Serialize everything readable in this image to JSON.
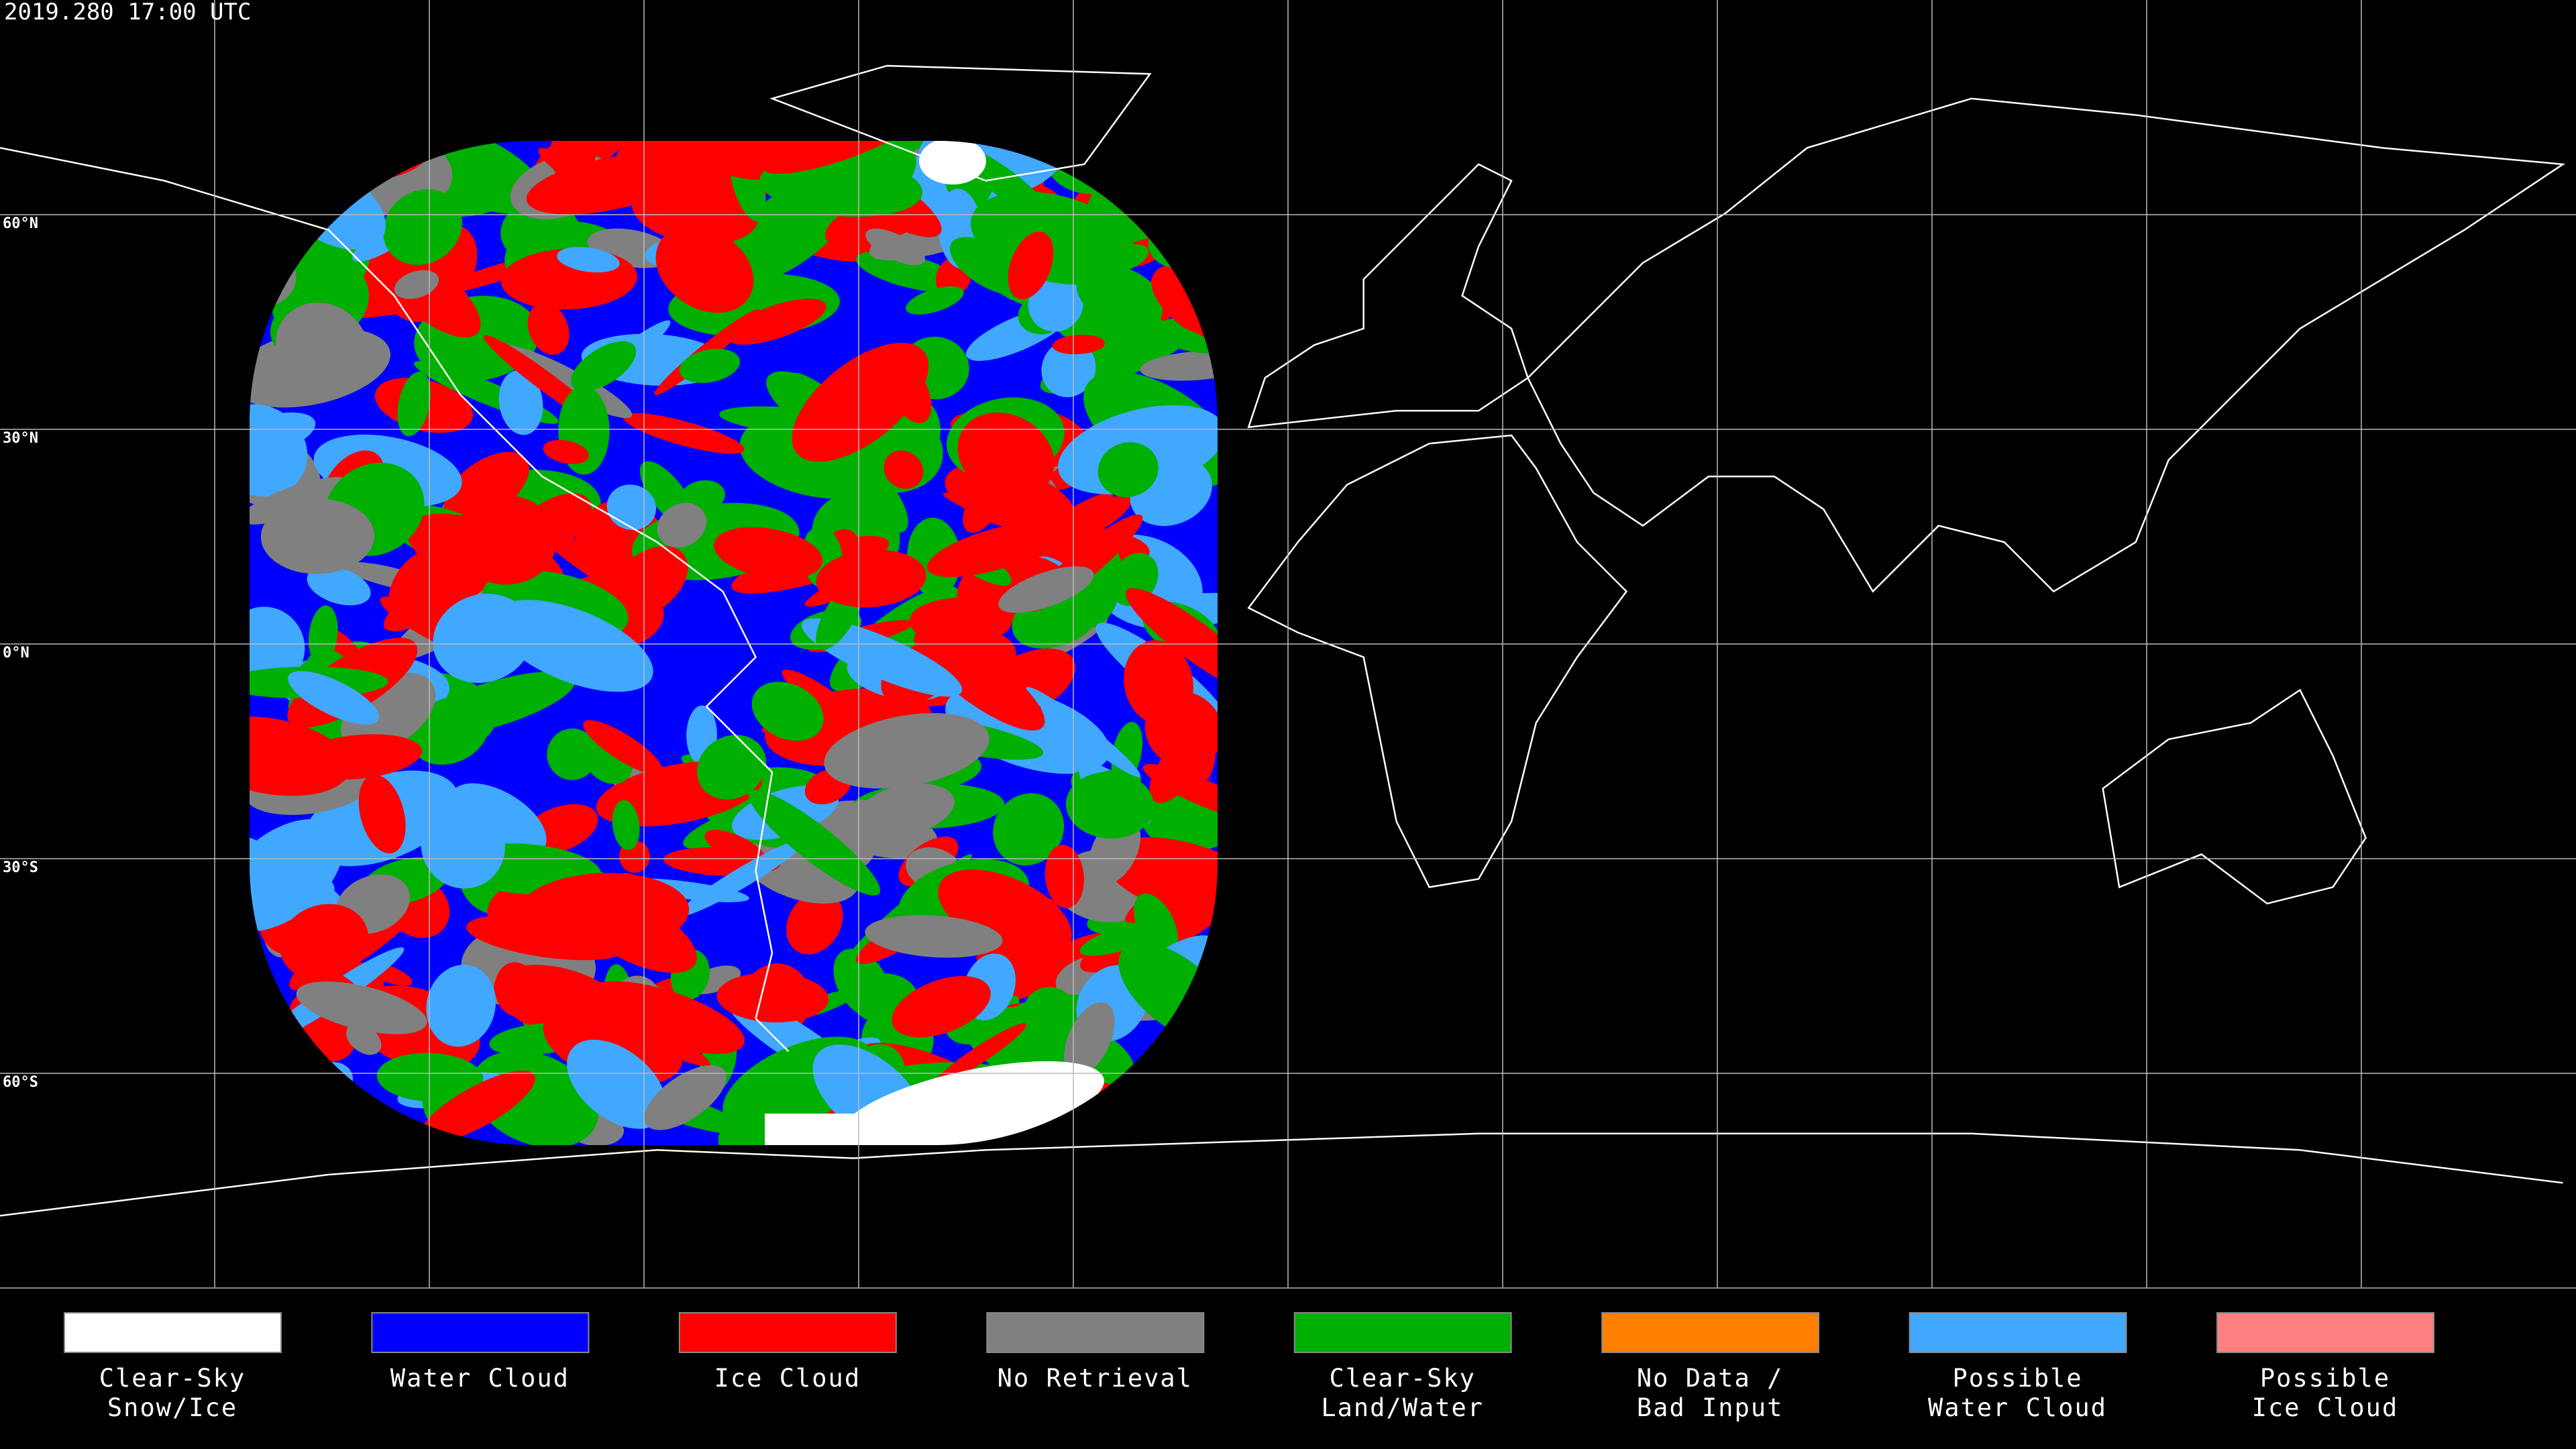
{
  "title": "2019.280 17:00 UTC",
  "latitude_labels": [
    "60°N",
    "30°N",
    "0°N",
    "30°S",
    "60°S"
  ],
  "legend": [
    {
      "label_lines": [
        "Clear-Sky",
        "Snow/Ice"
      ],
      "color": "#ffffff"
    },
    {
      "label_lines": [
        "Water Cloud"
      ],
      "color": "#0000ff"
    },
    {
      "label_lines": [
        "Ice Cloud"
      ],
      "color": "#ff0000"
    },
    {
      "label_lines": [
        "No Retrieval"
      ],
      "color": "#808080"
    },
    {
      "label_lines": [
        "Clear-Sky",
        "Land/Water"
      ],
      "color": "#00b000"
    },
    {
      "label_lines": [
        "No Data /",
        "Bad Input"
      ],
      "color": "#ff8000"
    },
    {
      "label_lines": [
        "Possible",
        "Water Cloud"
      ],
      "color": "#40a8ff"
    },
    {
      "label_lines": [
        "Possible",
        "Ice Cloud"
      ],
      "color": "#ff8080"
    }
  ]
}
